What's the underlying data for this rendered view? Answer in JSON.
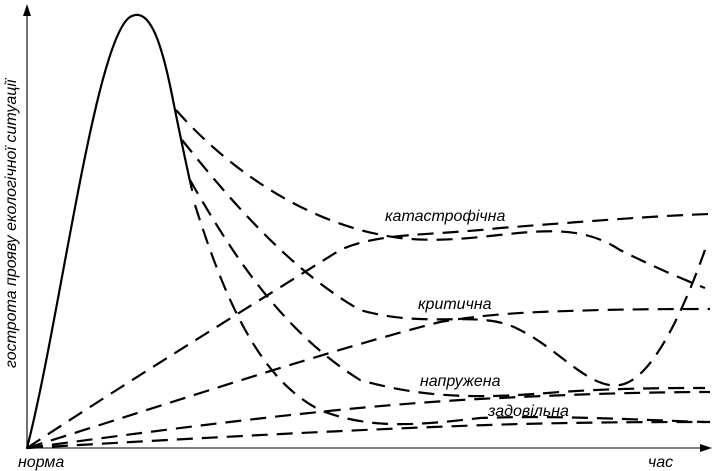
{
  "diagram": {
    "y_axis_label": "гострота прояву екологічної ситуації",
    "x_axis_label": "час",
    "origin_label": "норма",
    "zones": [
      {
        "id": "catastrophic",
        "label": "катастрофічна"
      },
      {
        "id": "critical",
        "label": "критична"
      },
      {
        "id": "tense",
        "label": "напружена"
      },
      {
        "id": "satisfactory",
        "label": "задовільна"
      }
    ],
    "line_color": "#000000"
  }
}
